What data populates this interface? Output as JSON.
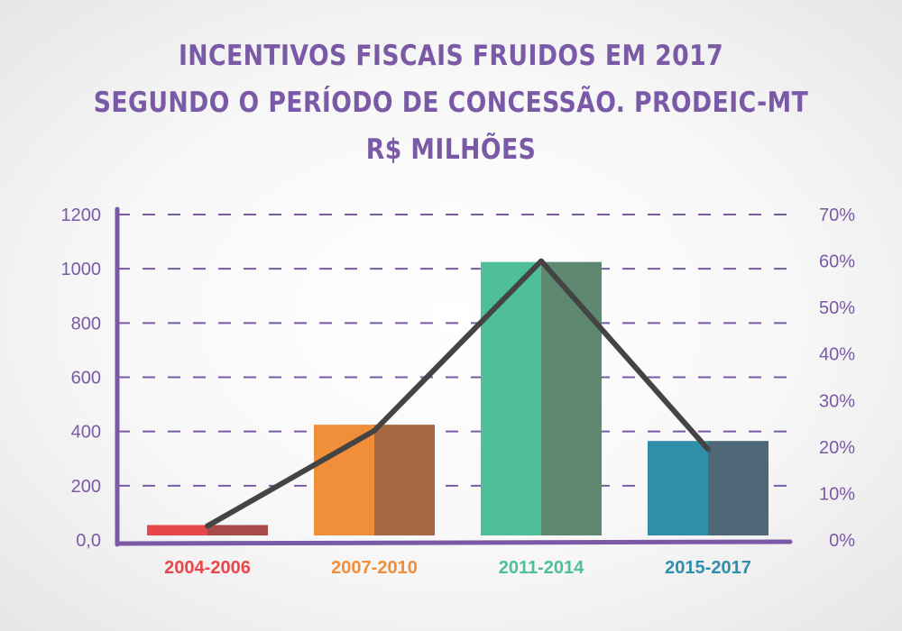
{
  "title_lines": [
    "INCENTIVOS FISCAIS FRUIDOS EM 2017",
    "SEGUNDO O PERÍODO DE CONCESSÃO. PRODEIC-MT",
    "R$ MILHÕES"
  ],
  "chart_data": {
    "type": "bar",
    "categories": [
      "2004-2006",
      "2007-2010",
      "2011-2014",
      "2015-2017"
    ],
    "series": [
      {
        "type": "bar",
        "axis": "left",
        "values": [
          55,
          425,
          1025,
          365
        ]
      },
      {
        "type": "line",
        "axis": "right",
        "values": [
          3,
          23.5,
          60,
          19.5
        ]
      }
    ],
    "ylim": [
      0,
      1200
    ],
    "y2lim": [
      0,
      70
    ],
    "yticks": [
      "0,0",
      "200",
      "400",
      "600",
      "800",
      "1000",
      "1200"
    ],
    "y2ticks": [
      "0%",
      "10%",
      "20%",
      "30%",
      "40%",
      "50%",
      "60%",
      "70%"
    ],
    "grid": "dashed horizontal",
    "colors": {
      "axis": "#7a5aa6",
      "line": "#444444",
      "bars": [
        {
          "light": "#e8474a",
          "dark": "#a94a4a",
          "label": "#e8474a"
        },
        {
          "light": "#f18e3a",
          "dark": "#a86842",
          "label": "#f18e3a"
        },
        {
          "light": "#4fbe9a",
          "dark": "#5f8870",
          "label": "#4fbe9a"
        },
        {
          "light": "#2f8eaa",
          "dark": "#4f6878",
          "label": "#2f8eaa"
        }
      ]
    }
  }
}
